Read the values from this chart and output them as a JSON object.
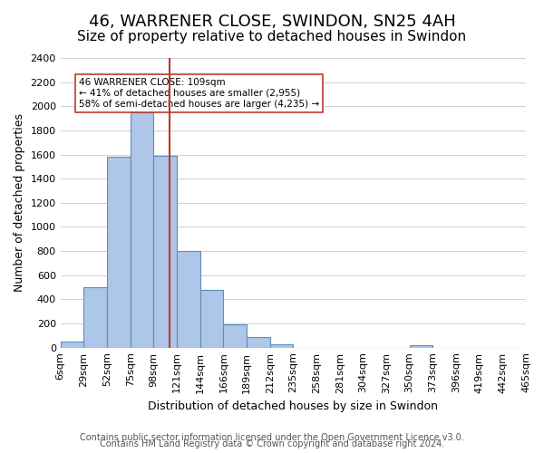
{
  "title": "46, WARRENER CLOSE, SWINDON, SN25 4AH",
  "subtitle": "Size of property relative to detached houses in Swindon",
  "xlabel": "Distribution of detached houses by size in Swindon",
  "ylabel": "Number of detached properties",
  "bin_labels": [
    "6sqm",
    "29sqm",
    "52sqm",
    "75sqm",
    "98sqm",
    "121sqm",
    "144sqm",
    "166sqm",
    "189sqm",
    "212sqm",
    "235sqm",
    "258sqm",
    "281sqm",
    "304sqm",
    "327sqm",
    "350sqm",
    "373sqm",
    "396sqm",
    "419sqm",
    "442sqm",
    "465sqm"
  ],
  "bar_heights": [
    50,
    500,
    1580,
    1950,
    1590,
    800,
    480,
    190,
    90,
    30,
    0,
    0,
    0,
    0,
    0,
    20,
    0,
    0,
    0,
    0
  ],
  "bar_color": "#aec6e8",
  "bar_edge_color": "#5a8fc2",
  "vline_x_index": 4.17,
  "vline_color": "#c0392b",
  "annotation_text": "46 WARRENER CLOSE: 109sqm\n← 41% of detached houses are smaller (2,955)\n58% of semi-detached houses are larger (4,235) →",
  "annotation_box_color": "white",
  "annotation_box_edge_color": "#c0392b",
  "ylim": [
    0,
    2400
  ],
  "yticks": [
    0,
    200,
    400,
    600,
    800,
    1000,
    1200,
    1400,
    1600,
    1800,
    2000,
    2200,
    2400
  ],
  "footer_line1": "Contains HM Land Registry data © Crown copyright and database right 2024.",
  "footer_line2": "Contains public sector information licensed under the Open Government Licence v3.0.",
  "background_color": "#ffffff",
  "grid_color": "#d0d0d0",
  "title_fontsize": 13,
  "subtitle_fontsize": 11,
  "axis_label_fontsize": 9,
  "tick_fontsize": 8,
  "footer_fontsize": 7
}
